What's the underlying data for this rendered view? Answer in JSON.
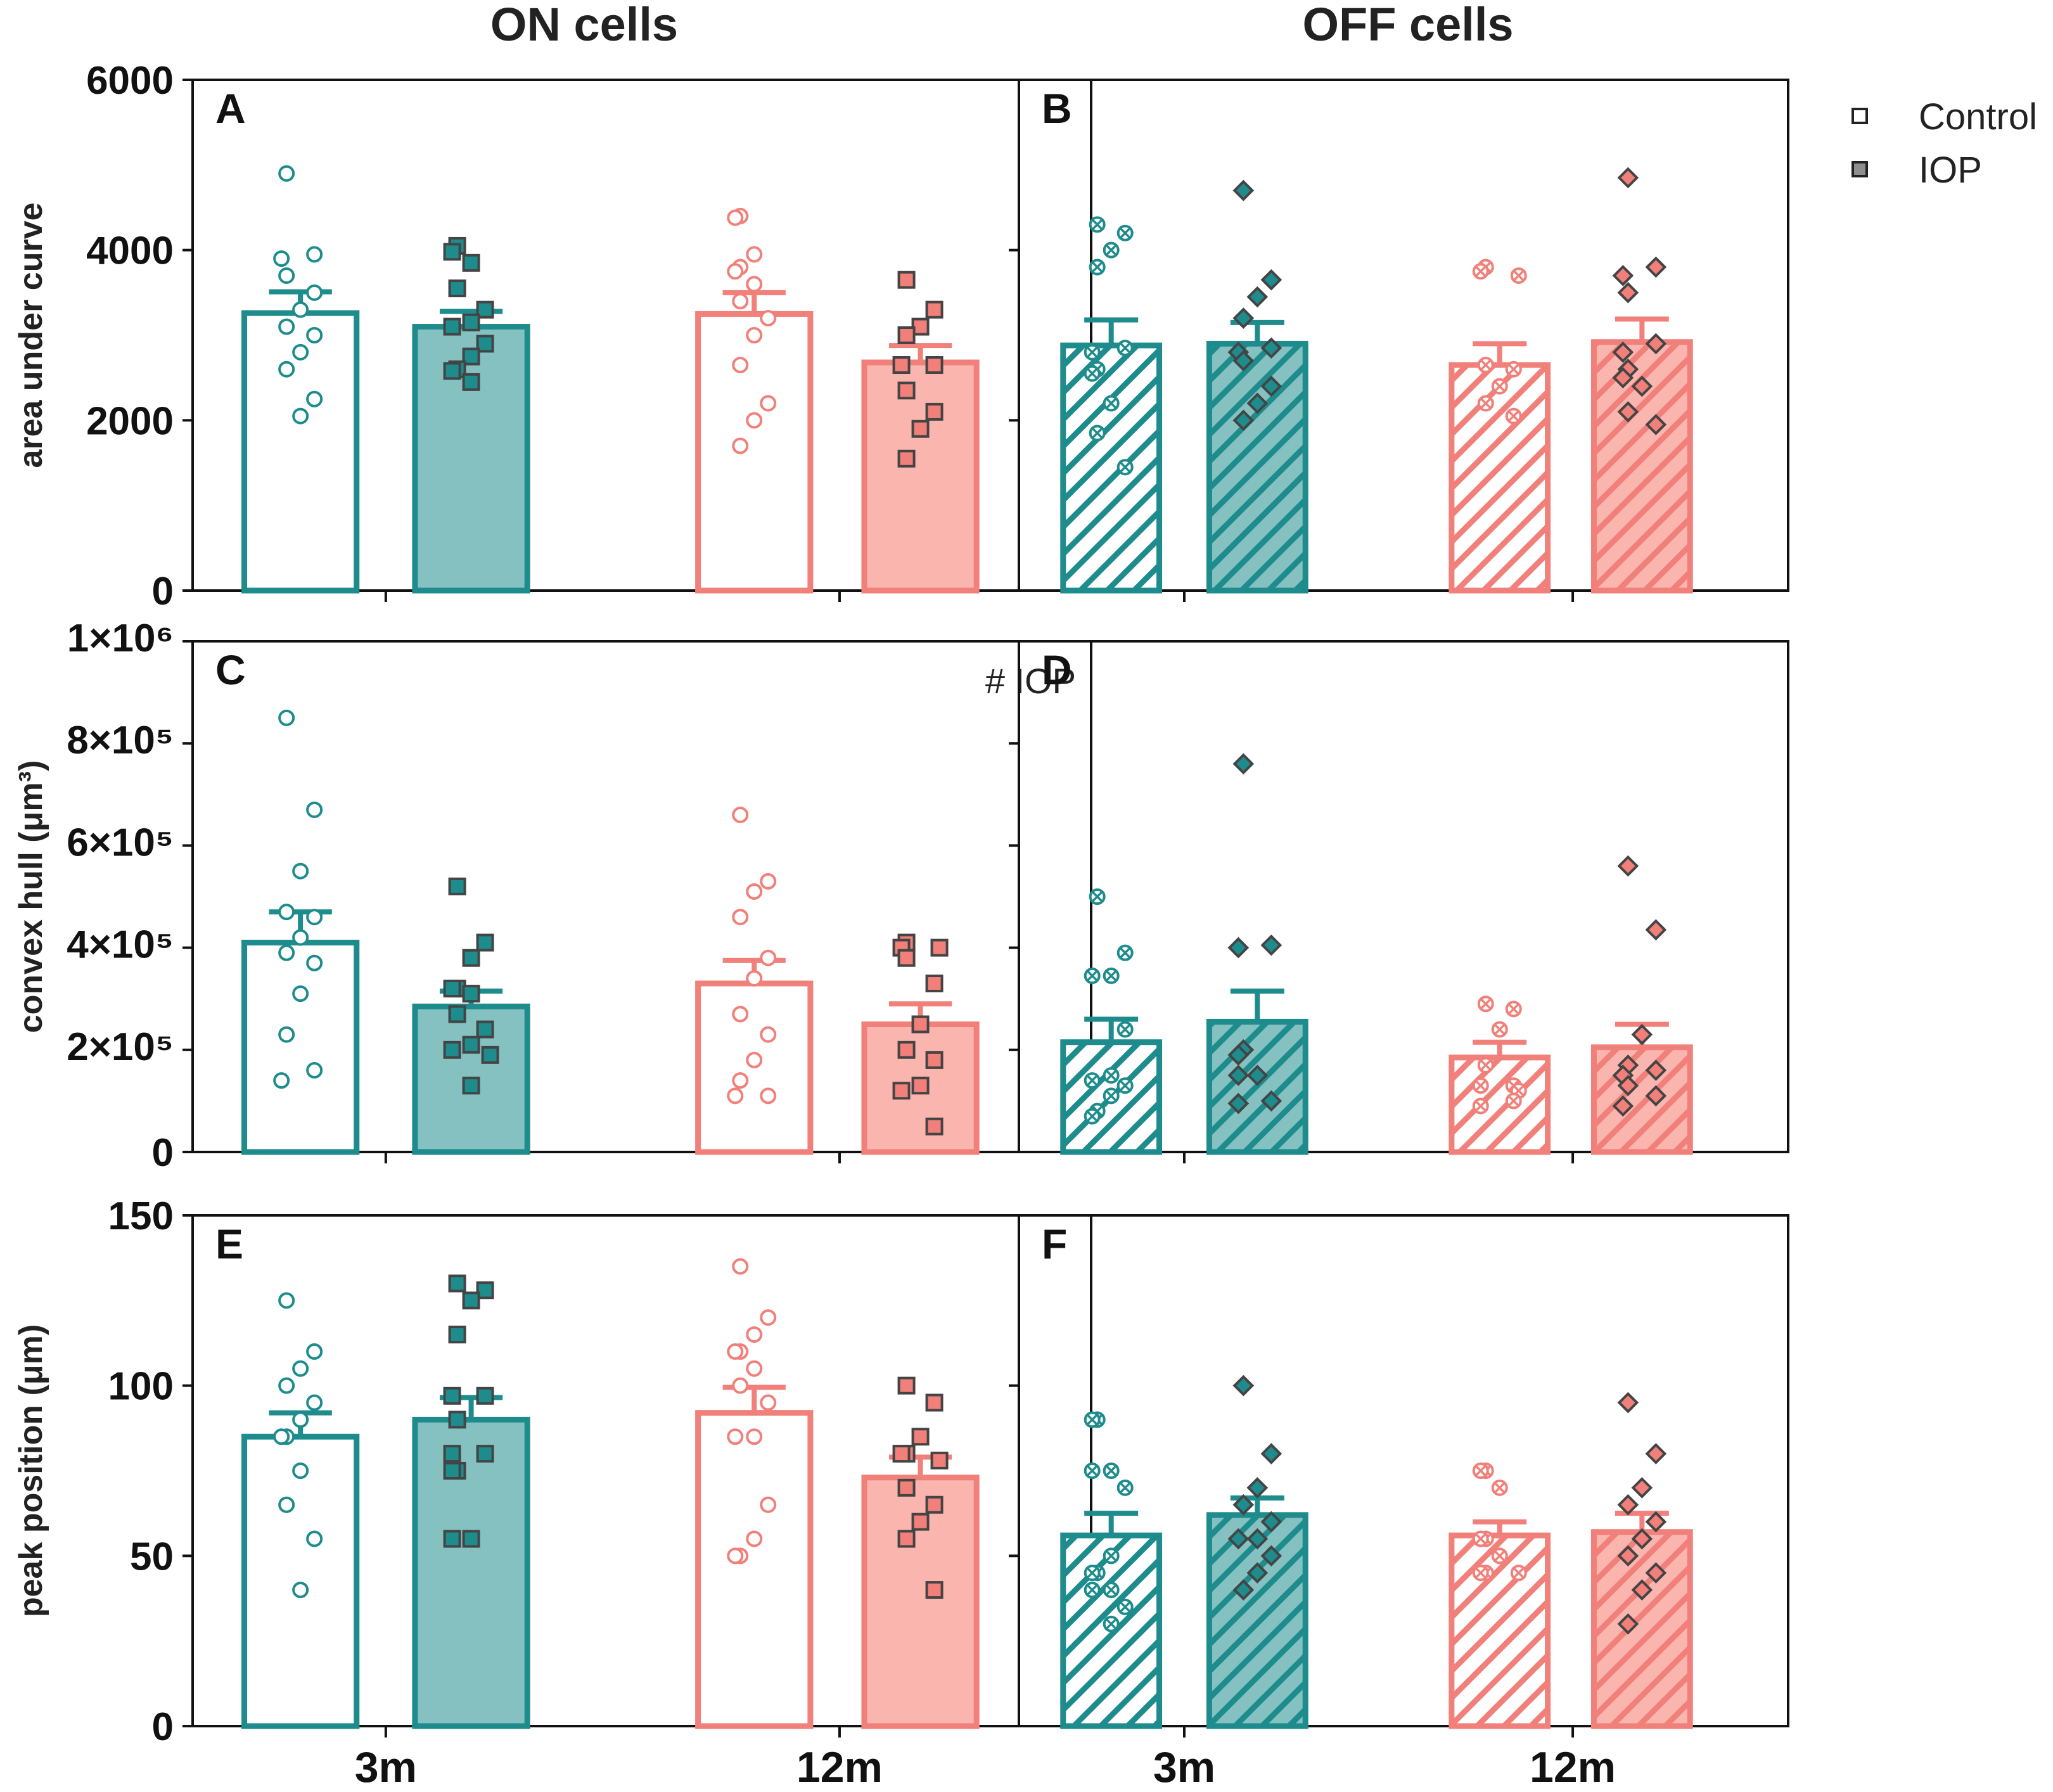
{
  "figure": {
    "column_titles": [
      "ON cells",
      "OFF cells"
    ],
    "legend": [
      {
        "label": "Control",
        "fill": "open"
      },
      {
        "label": "IOP",
        "fill": "filled"
      }
    ],
    "colors": {
      "teal": "#1e8c8c",
      "teal_fill": "#85c1c1",
      "salmon": "#f1807a",
      "salmon_fill": "#fbb5af",
      "marker_edge": "#444444",
      "axis": "#111111"
    }
  },
  "chart_data": [
    {
      "panel": "A",
      "type": "bar",
      "column": "ON cells",
      "ylabel": "area under curve",
      "yticks": [
        "0",
        "2000",
        "4000",
        "6000"
      ],
      "ylim": [
        0,
        6000
      ],
      "categories": [
        "3m",
        "12m"
      ],
      "show_xticklabels": false,
      "marker": "circle/square",
      "hatch": false,
      "annotation": "",
      "groups": [
        {
          "age": "3m",
          "condition": "Control",
          "mean": 3260,
          "sem": 250,
          "points": [
            4900,
            3950,
            3900,
            3700,
            3500,
            3300,
            3100,
            3000,
            2800,
            2600,
            2250,
            2050
          ]
        },
        {
          "age": "3m",
          "condition": "IOP",
          "mean": 3100,
          "sem": 180,
          "points": [
            4050,
            3980,
            3850,
            3550,
            3300,
            3150,
            3100,
            2900,
            2750,
            2600,
            2580,
            2450
          ]
        },
        {
          "age": "12m",
          "condition": "Control",
          "mean": 3250,
          "sem": 250,
          "points": [
            4400,
            4380,
            3950,
            3800,
            3750,
            3600,
            3400,
            3200,
            3000,
            2650,
            2200,
            2000,
            1700
          ]
        },
        {
          "age": "12m",
          "condition": "IOP",
          "mean": 2680,
          "sem": 200,
          "points": [
            3650,
            3300,
            3100,
            3000,
            2650,
            2650,
            2350,
            2100,
            1900,
            1550
          ]
        }
      ]
    },
    {
      "panel": "B",
      "type": "bar",
      "column": "OFF cells",
      "ylabel": "",
      "yticks": [],
      "ylim": [
        0,
        6000
      ],
      "categories": [
        "3m",
        "12m"
      ],
      "show_xticklabels": false,
      "marker": "circle-x/diamond",
      "hatch": true,
      "annotation": "",
      "groups": [
        {
          "age": "3m",
          "condition": "Control",
          "mean": 2880,
          "sem": 300,
          "points": [
            4300,
            4200,
            4000,
            3800,
            2850,
            2800,
            2600,
            2550,
            2200,
            1850,
            1450
          ]
        },
        {
          "age": "3m",
          "condition": "IOP",
          "mean": 2900,
          "sem": 250,
          "points": [
            4700,
            3650,
            3450,
            3200,
            2850,
            2800,
            2700,
            2400,
            2200,
            2000
          ]
        },
        {
          "age": "12m",
          "condition": "Control",
          "mean": 2650,
          "sem": 250,
          "points": [
            3800,
            3750,
            3700,
            2650,
            2600,
            2400,
            2200,
            2050
          ]
        },
        {
          "age": "12m",
          "condition": "IOP",
          "mean": 2920,
          "sem": 270,
          "points": [
            4850,
            3800,
            3700,
            3500,
            2900,
            2800,
            2600,
            2500,
            2400,
            2100,
            1950
          ]
        }
      ]
    },
    {
      "panel": "C",
      "type": "bar",
      "column": "ON cells",
      "ylabel": "convex hull (μm³)",
      "yticks": [
        "0",
        "2×10⁵",
        "4×10⁵",
        "6×10⁵",
        "8×10⁵",
        "1×10⁶"
      ],
      "ylim": [
        0,
        1000000
      ],
      "categories": [
        "3m",
        "12m"
      ],
      "show_xticklabels": false,
      "marker": "circle/square",
      "hatch": false,
      "annotation": "# IOP",
      "groups": [
        {
          "age": "3m",
          "condition": "Control",
          "mean": 410000,
          "sem": 60000,
          "points": [
            850000,
            670000,
            550000,
            470000,
            460000,
            420000,
            390000,
            370000,
            310000,
            230000,
            160000,
            140000
          ]
        },
        {
          "age": "3m",
          "condition": "IOP",
          "mean": 285000,
          "sem": 30000,
          "points": [
            520000,
            410000,
            380000,
            320000,
            320000,
            310000,
            270000,
            240000,
            210000,
            200000,
            190000,
            130000
          ]
        },
        {
          "age": "12m",
          "condition": "Control",
          "mean": 330000,
          "sem": 45000,
          "points": [
            660000,
            530000,
            510000,
            460000,
            380000,
            340000,
            270000,
            230000,
            180000,
            140000,
            110000,
            110000
          ]
        },
        {
          "age": "12m",
          "condition": "IOP",
          "mean": 250000,
          "sem": 40000,
          "points": [
            410000,
            400000,
            400000,
            380000,
            330000,
            250000,
            200000,
            180000,
            130000,
            120000,
            50000
          ]
        }
      ]
    },
    {
      "panel": "D",
      "type": "bar",
      "column": "OFF cells",
      "ylabel": "",
      "yticks": [],
      "ylim": [
        0,
        1000000
      ],
      "categories": [
        "3m",
        "12m"
      ],
      "show_xticklabels": false,
      "marker": "circle-x/diamond",
      "hatch": true,
      "annotation": "",
      "groups": [
        {
          "age": "3m",
          "condition": "Control",
          "mean": 215000,
          "sem": 45000,
          "points": [
            500000,
            390000,
            345000,
            345000,
            240000,
            150000,
            140000,
            130000,
            110000,
            80000,
            70000
          ]
        },
        {
          "age": "3m",
          "condition": "IOP",
          "mean": 255000,
          "sem": 60000,
          "points": [
            760000,
            405000,
            400000,
            200000,
            190000,
            150000,
            150000,
            100000,
            95000
          ]
        },
        {
          "age": "12m",
          "condition": "Control",
          "mean": 185000,
          "sem": 30000,
          "points": [
            290000,
            280000,
            240000,
            170000,
            130000,
            130000,
            120000,
            100000,
            90000
          ]
        },
        {
          "age": "12m",
          "condition": "IOP",
          "mean": 205000,
          "sem": 45000,
          "points": [
            560000,
            435000,
            230000,
            170000,
            160000,
            150000,
            130000,
            110000,
            90000
          ]
        }
      ]
    },
    {
      "panel": "E",
      "type": "bar",
      "column": "ON cells",
      "ylabel": "peak position (μm)",
      "yticks": [
        "0",
        "50",
        "100",
        "150"
      ],
      "ylim": [
        0,
        150
      ],
      "categories": [
        "3m",
        "12m"
      ],
      "show_xticklabels": true,
      "marker": "circle/square",
      "hatch": false,
      "annotation": "",
      "groups": [
        {
          "age": "3m",
          "condition": "Control",
          "mean": 85,
          "sem": 7,
          "points": [
            125,
            110,
            105,
            100,
            95,
            90,
            85,
            85,
            75,
            65,
            55,
            40
          ]
        },
        {
          "age": "3m",
          "condition": "IOP",
          "mean": 90,
          "sem": 6.5,
          "points": [
            130,
            128,
            125,
            115,
            97,
            97,
            90,
            80,
            80,
            75,
            75,
            55,
            55
          ]
        },
        {
          "age": "12m",
          "condition": "Control",
          "mean": 92,
          "sem": 7.5,
          "points": [
            135,
            120,
            115,
            110,
            110,
            105,
            100,
            95,
            85,
            85,
            65,
            55,
            50,
            50
          ]
        },
        {
          "age": "12m",
          "condition": "IOP",
          "mean": 73,
          "sem": 6,
          "points": [
            100,
            95,
            85,
            80,
            80,
            78,
            70,
            65,
            60,
            55,
            40
          ]
        }
      ]
    },
    {
      "panel": "F",
      "type": "bar",
      "column": "OFF cells",
      "ylabel": "",
      "yticks": [],
      "ylim": [
        0,
        150
      ],
      "categories": [
        "3m",
        "12m"
      ],
      "show_xticklabels": true,
      "marker": "circle-x/diamond",
      "hatch": true,
      "annotation": "",
      "groups": [
        {
          "age": "3m",
          "condition": "Control",
          "mean": 56,
          "sem": 6.5,
          "points": [
            90,
            90,
            75,
            75,
            70,
            50,
            45,
            45,
            40,
            40,
            35,
            30
          ]
        },
        {
          "age": "3m",
          "condition": "IOP",
          "mean": 62,
          "sem": 5,
          "points": [
            100,
            80,
            70,
            65,
            60,
            55,
            55,
            50,
            45,
            40
          ]
        },
        {
          "age": "12m",
          "condition": "Control",
          "mean": 56,
          "sem": 4,
          "points": [
            75,
            75,
            70,
            55,
            55,
            50,
            45,
            45,
            45
          ]
        },
        {
          "age": "12m",
          "condition": "IOP",
          "mean": 57,
          "sem": 5.5,
          "points": [
            95,
            80,
            70,
            65,
            60,
            55,
            50,
            45,
            40,
            30
          ]
        }
      ]
    }
  ]
}
